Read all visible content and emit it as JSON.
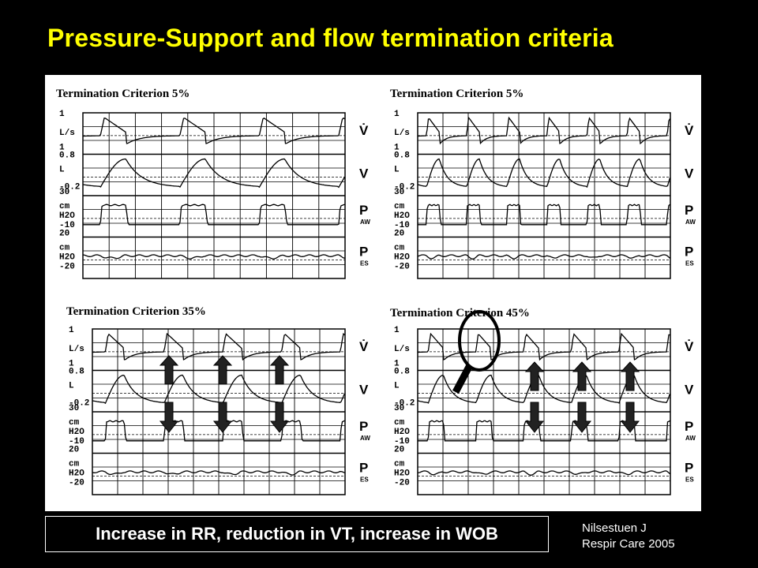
{
  "title": "Pressure-Support and flow termination criteria",
  "caption": "Increase in RR, reduction in VT, increase in WOB",
  "citation": {
    "author": "Nilsestuen J",
    "journal": "Respir Care 2005"
  },
  "panels": [
    {
      "title": "Termination Criterion 5%",
      "breaths": 3
    },
    {
      "title": "Termination Criterion 5%",
      "breaths": 6
    },
    {
      "title": "Termination Criterion 35%",
      "breaths": 4
    },
    {
      "title": "Termination Criterion 45%",
      "breaths": 5
    }
  ],
  "y_labels": {
    "flow": [
      "1",
      "L/s"
    ],
    "volume": [
      "1",
      "0.8",
      "L",
      "-0.2"
    ],
    "paw": [
      "30",
      "cm",
      "H2O",
      "-10"
    ],
    "pes": [
      "20",
      "cm",
      "H2O",
      "-20"
    ]
  },
  "right_labels": {
    "flow": "V̇",
    "volume": "V",
    "paw": [
      "P",
      "AW"
    ],
    "pes": [
      "P",
      "ES"
    ]
  },
  "colors": {
    "background": "#000000",
    "title": "#ffff00",
    "text": "#ffffff",
    "figure": "#ffffff"
  }
}
